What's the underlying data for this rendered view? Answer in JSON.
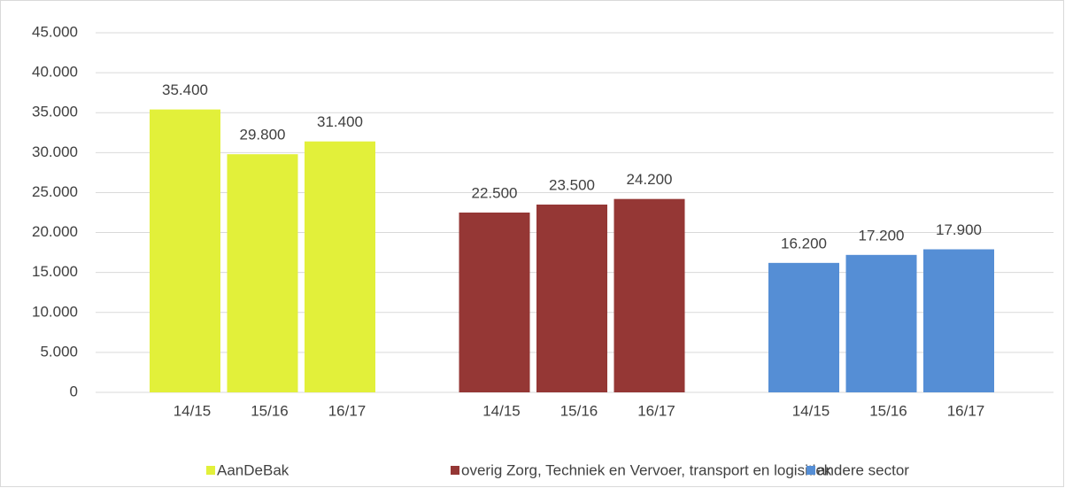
{
  "chart_data": {
    "type": "bar",
    "categories": [
      "14/15",
      "15/16",
      "16/17"
    ],
    "series": [
      {
        "name": "AanDeBak",
        "color": "#e2f03a",
        "values": [
          35400,
          29800,
          31400
        ],
        "value_labels": [
          "35.400",
          "29.800",
          "31.400"
        ]
      },
      {
        "name": "overig Zorg, Techniek en Vervoer, transport en logisitiek",
        "color": "#953735",
        "values": [
          22500,
          23500,
          24200
        ],
        "value_labels": [
          "22.500",
          "23.500",
          "24.200"
        ]
      },
      {
        "name": "andere sector",
        "color": "#558ed5",
        "values": [
          16200,
          17200,
          17900
        ],
        "value_labels": [
          "16.200",
          "17.200",
          "17.900"
        ]
      }
    ],
    "ylim": [
      0,
      45000
    ],
    "yticks": [
      0,
      {
        "value": 5000,
        "label": "5.000"
      },
      {
        "value": 10000,
        "label": "10.000"
      },
      {
        "value": 15000,
        "label": "15.000"
      },
      {
        "value": 20000,
        "label": "20.000"
      },
      {
        "value": 25000,
        "label": "25.000"
      },
      {
        "value": 30000,
        "label": "30.000"
      },
      {
        "value": 35000,
        "label": "35.000"
      },
      {
        "value": 40000,
        "label": "40.000"
      },
      {
        "value": 45000,
        "label": "45.000"
      }
    ],
    "grid": true,
    "legend": "bottom"
  }
}
